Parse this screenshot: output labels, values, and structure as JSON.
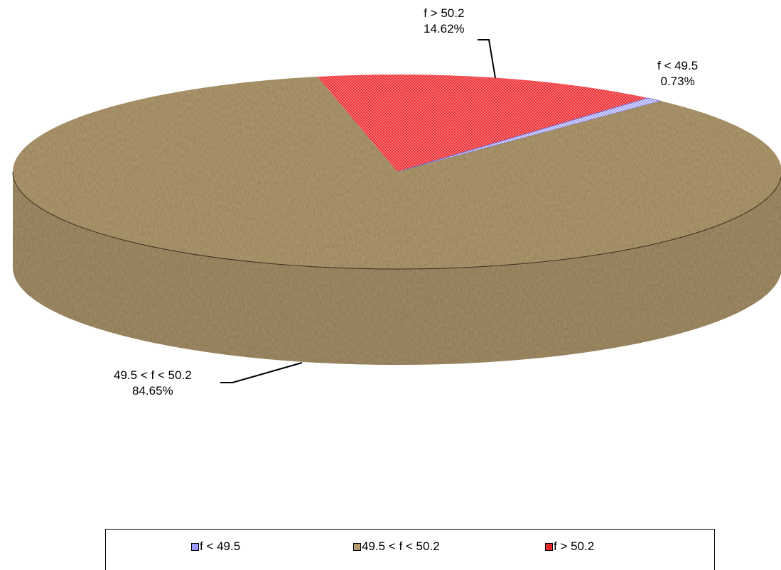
{
  "chart_data": {
    "type": "pie",
    "style": "3d",
    "slices": [
      {
        "label": "f < 49.5",
        "value": 0.73,
        "value_label": "0.73%",
        "color": "#9999ff"
      },
      {
        "label": "49.5 < f < 50.2",
        "value": 84.65,
        "value_label": "84.65%",
        "color": "#b29b70"
      },
      {
        "label": "f > 50.2",
        "value": 14.62,
        "value_label": "14.62%",
        "color": "#e8282e"
      }
    ],
    "legend_position": "bottom",
    "legend": [
      "f < 49.5",
      "49.5 < f < 50.2",
      "f > 50.2"
    ]
  }
}
